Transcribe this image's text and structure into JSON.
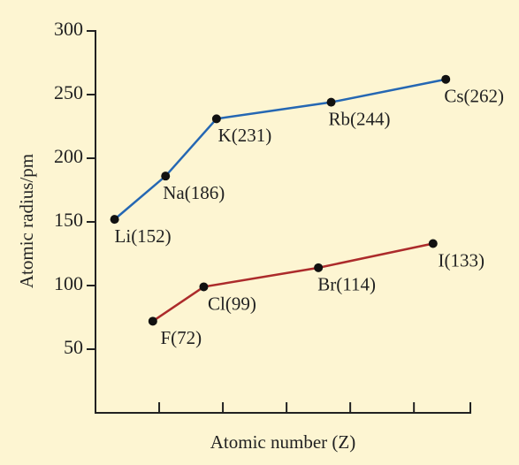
{
  "chart_data": {
    "type": "line",
    "x_label": "Atomic number (Z)",
    "y_label": "Atomic radius/pm",
    "xlim": [
      0,
      59
    ],
    "xticks": [
      10,
      20,
      30,
      40,
      50
    ],
    "ylim": [
      0,
      300
    ],
    "yticks": [
      50,
      100,
      150,
      200,
      250,
      300
    ],
    "series": [
      {
        "color": "#2567b3",
        "x": [
          3,
          11,
          19,
          37,
          55
        ],
        "values": [
          152,
          186,
          231,
          244,
          262
        ],
        "value_labels": [
          "Li(152)",
          "Na(186)",
          "K(231)",
          "Rb(244)",
          "Cs(262)"
        ]
      },
      {
        "color": "#ac2b2b",
        "x": [
          9,
          17,
          35,
          53
        ],
        "values": [
          72,
          99,
          114,
          133
        ],
        "value_labels": [
          "F(72)",
          "Cl(99)",
          "Br(114)",
          "I(133)"
        ]
      }
    ]
  }
}
